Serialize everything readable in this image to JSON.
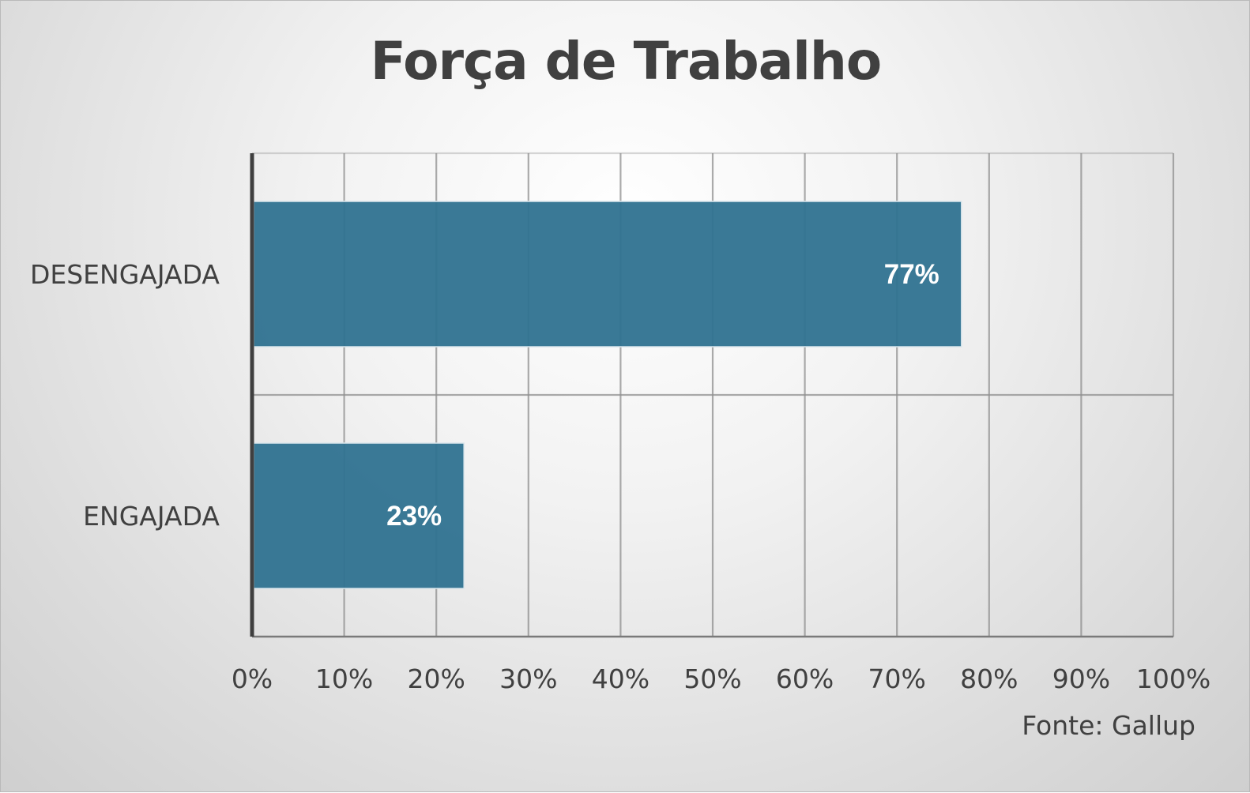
{
  "chart_data": {
    "type": "bar",
    "orientation": "horizontal",
    "title": "Força de Trabalho",
    "categories": [
      "DESENGAJADA",
      "ENGAJADA"
    ],
    "values": [
      77,
      23
    ],
    "data_labels": [
      "77%",
      "23%"
    ],
    "xlim": [
      0,
      100
    ],
    "x_ticks": [
      "0%",
      "10%",
      "20%",
      "30%",
      "40%",
      "50%",
      "60%",
      "70%",
      "80%",
      "90%",
      "100%"
    ],
    "grid": true,
    "bar_color": "#2f7290",
    "source_note": "Fonte: Gallup"
  }
}
